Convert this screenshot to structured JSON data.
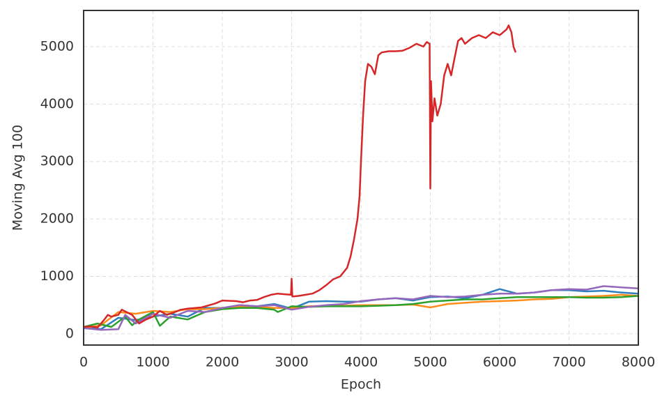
{
  "chart_data": {
    "type": "line",
    "xlabel": "Epoch",
    "ylabel": "Moving Avg 100",
    "xlim": [
      0,
      8000
    ],
    "ylim": [
      -195,
      5630
    ],
    "xticks": [
      0,
      1000,
      2000,
      3000,
      4000,
      5000,
      6000,
      7000,
      8000
    ],
    "yticks": [
      0,
      1000,
      2000,
      3000,
      4000,
      5000
    ],
    "grid": true,
    "series": [
      {
        "color": "#2f7fbd",
        "x": [
          0,
          250,
          500,
          750,
          1000,
          1250,
          1500,
          1750,
          2000,
          2250,
          2500,
          2750,
          3000,
          3250,
          3500,
          3750,
          4000,
          4250,
          4500,
          4750,
          5000,
          5250,
          5500,
          5750,
          6000,
          6250,
          6500,
          6750,
          7000,
          7250,
          7500,
          7750,
          8000
        ],
        "values": [
          120,
          80,
          280,
          240,
          300,
          350,
          300,
          450,
          450,
          500,
          480,
          520,
          440,
          560,
          570,
          560,
          560,
          600,
          620,
          580,
          640,
          650,
          620,
          680,
          780,
          700,
          720,
          760,
          760,
          740,
          750,
          720,
          700
        ]
      },
      {
        "color": "#ff8c1a",
        "x": [
          0,
          250,
          500,
          750,
          1000,
          1250,
          1500,
          1750,
          2000,
          2250,
          2500,
          2750,
          3000,
          3250,
          3500,
          3750,
          4000,
          4250,
          4500,
          4750,
          5000,
          5250,
          5500,
          5750,
          6000,
          6250,
          6500,
          6750,
          7000,
          7250,
          7500,
          7750,
          8000
        ],
        "values": [
          100,
          150,
          380,
          350,
          400,
          380,
          430,
          430,
          450,
          480,
          470,
          450,
          450,
          480,
          490,
          490,
          500,
          500,
          500,
          510,
          460,
          520,
          540,
          560,
          570,
          580,
          600,
          610,
          640,
          650,
          660,
          680,
          660
        ]
      },
      {
        "color": "#2ca02c",
        "x": [
          0,
          200,
          400,
          600,
          700,
          800,
          1000,
          1100,
          1250,
          1500,
          1750,
          2000,
          2250,
          2500,
          2750,
          2800,
          3000,
          3250,
          3500,
          3750,
          4000,
          4250,
          4500,
          4750,
          5000,
          5250,
          5500,
          5750,
          6000,
          6250,
          6500,
          6750,
          7000,
          7250,
          7500,
          7750,
          8000
        ],
        "values": [
          120,
          180,
          120,
          300,
          150,
          250,
          380,
          140,
          300,
          250,
          380,
          430,
          450,
          450,
          420,
          380,
          480,
          470,
          480,
          480,
          480,
          490,
          500,
          520,
          560,
          580,
          600,
          600,
          620,
          640,
          640,
          640,
          640,
          630,
          630,
          640,
          660
        ]
      },
      {
        "color": "#9467bd",
        "x": [
          0,
          250,
          500,
          600,
          750,
          1000,
          1250,
          1500,
          1750,
          2000,
          2250,
          2500,
          2750,
          3000,
          3250,
          3500,
          3750,
          4000,
          4250,
          4500,
          4750,
          5000,
          5250,
          5500,
          5750,
          6000,
          6250,
          6500,
          6750,
          7000,
          7250,
          7500,
          7750,
          8000
        ],
        "values": [
          100,
          70,
          80,
          330,
          180,
          350,
          280,
          400,
          380,
          450,
          500,
          480,
          500,
          420,
          470,
          500,
          520,
          570,
          600,
          620,
          600,
          660,
          640,
          650,
          680,
          700,
          700,
          720,
          760,
          780,
          770,
          830,
          810,
          790
        ]
      },
      {
        "color": "#d62728",
        "x": [
          0,
          100,
          200,
          300,
          350,
          400,
          500,
          550,
          600,
          700,
          800,
          900,
          1000,
          1100,
          1200,
          1300,
          1400,
          1500,
          1700,
          1900,
          2000,
          2200,
          2300,
          2400,
          2500,
          2600,
          2700,
          2800,
          2900,
          2990,
          3000,
          3010,
          3100,
          3200,
          3300,
          3400,
          3500,
          3600,
          3700,
          3800,
          3850,
          3900,
          3950,
          3980,
          4000,
          4030,
          4060,
          4100,
          4150,
          4200,
          4250,
          4300,
          4400,
          4500,
          4600,
          4700,
          4800,
          4900,
          4950,
          4990,
          5000,
          5010,
          5030,
          5060,
          5100,
          5150,
          5200,
          5250,
          5300,
          5350,
          5400,
          5450,
          5500,
          5600,
          5700,
          5800,
          5900,
          6000,
          6050,
          6100,
          6130,
          6170,
          6200,
          6230
        ],
        "values": [
          120,
          130,
          110,
          250,
          330,
          300,
          330,
          420,
          390,
          330,
          180,
          250,
          300,
          400,
          330,
          370,
          420,
          440,
          460,
          530,
          580,
          570,
          550,
          580,
          590,
          640,
          680,
          700,
          690,
          680,
          960,
          650,
          660,
          680,
          700,
          760,
          850,
          950,
          1000,
          1150,
          1350,
          1650,
          2000,
          2400,
          3000,
          3800,
          4400,
          4700,
          4650,
          4520,
          4850,
          4900,
          4920,
          4920,
          4930,
          4980,
          5050,
          5000,
          5080,
          5050,
          2530,
          4400,
          3700,
          4100,
          3800,
          4000,
          4500,
          4700,
          4500,
          4800,
          5100,
          5150,
          5050,
          5150,
          5200,
          5150,
          5250,
          5200,
          5250,
          5300,
          5370,
          5250,
          5000,
          4900
        ]
      }
    ]
  }
}
